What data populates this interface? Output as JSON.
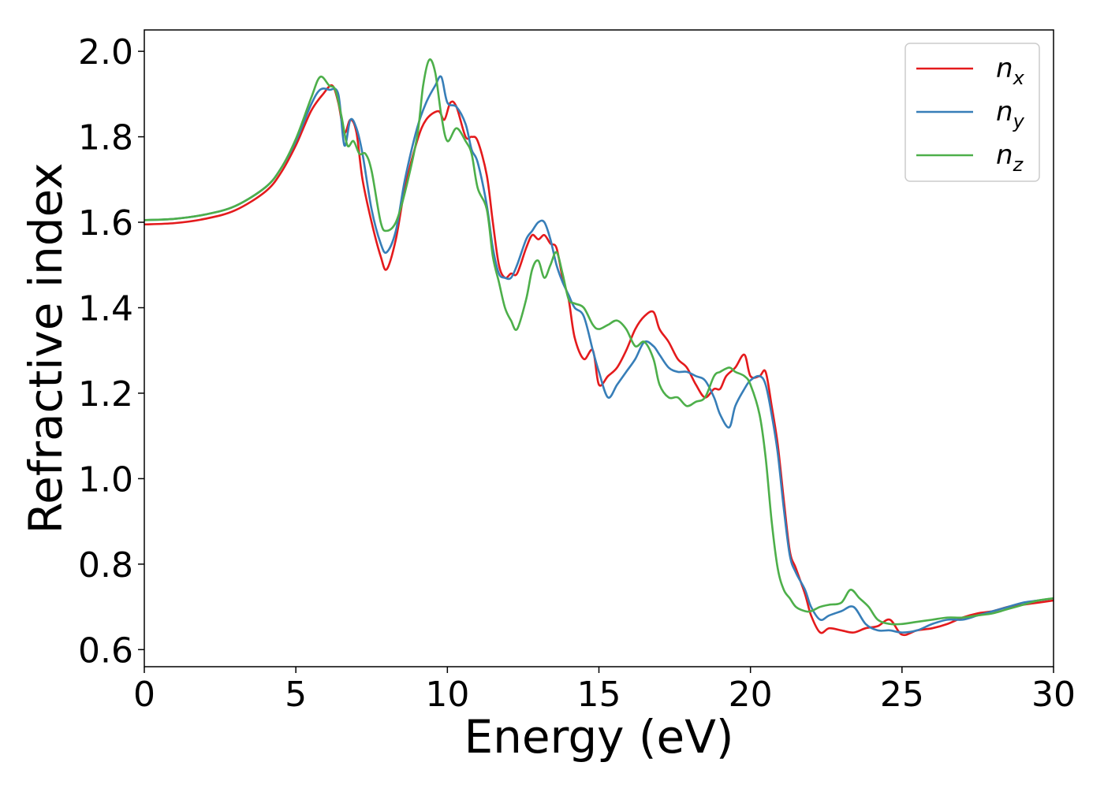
{
  "chart_data": {
    "type": "line",
    "xlabel": "Energy (eV)",
    "ylabel": "Refractive index",
    "xlim": [
      0,
      30
    ],
    "ylim": [
      0.56,
      2.05
    ],
    "xticks": [
      "0",
      "5",
      "10",
      "15",
      "20",
      "25",
      "30"
    ],
    "yticks": [
      "0.6",
      "0.8",
      "1.0",
      "1.2",
      "1.4",
      "1.6",
      "1.8",
      "2.0"
    ],
    "grid": false,
    "legend_position": "top-right",
    "series": [
      {
        "name": "n",
        "subscript": "x",
        "color": "#e41a1c",
        "x": [
          0,
          1,
          2,
          3,
          4,
          4.5,
          5,
          5.5,
          5.9,
          6.2,
          6.4,
          6.6,
          6.8,
          7.0,
          7.2,
          7.5,
          7.8,
          8.0,
          8.3,
          8.6,
          9.0,
          9.3,
          9.7,
          9.9,
          10.1,
          10.3,
          10.6,
          10.8,
          11.0,
          11.3,
          11.5,
          11.7,
          11.9,
          12.1,
          12.3,
          12.6,
          12.8,
          13.0,
          13.2,
          13.4,
          13.6,
          13.8,
          14.0,
          14.2,
          14.5,
          14.8,
          15.0,
          15.3,
          15.6,
          15.9,
          16.2,
          16.5,
          16.8,
          17.0,
          17.3,
          17.6,
          17.9,
          18.2,
          18.5,
          18.8,
          19.0,
          19.2,
          19.5,
          19.8,
          20.0,
          20.3,
          20.5,
          20.7,
          20.9,
          21.1,
          21.3,
          21.5,
          21.8,
          22.0,
          22.3,
          22.6,
          23.0,
          23.4,
          23.8,
          24.2,
          24.6,
          25.0,
          25.5,
          26.0,
          26.5,
          27.0,
          27.5,
          28.0,
          28.5,
          29.0,
          29.5,
          30.0
        ],
        "y": [
          1.595,
          1.598,
          1.608,
          1.628,
          1.672,
          1.715,
          1.78,
          1.86,
          1.9,
          1.92,
          1.88,
          1.81,
          1.84,
          1.81,
          1.7,
          1.6,
          1.52,
          1.49,
          1.56,
          1.68,
          1.79,
          1.84,
          1.86,
          1.84,
          1.88,
          1.87,
          1.8,
          1.8,
          1.79,
          1.71,
          1.6,
          1.5,
          1.47,
          1.48,
          1.48,
          1.54,
          1.57,
          1.56,
          1.57,
          1.55,
          1.54,
          1.47,
          1.42,
          1.33,
          1.28,
          1.3,
          1.22,
          1.24,
          1.26,
          1.3,
          1.35,
          1.38,
          1.39,
          1.35,
          1.32,
          1.28,
          1.26,
          1.22,
          1.19,
          1.21,
          1.21,
          1.24,
          1.26,
          1.29,
          1.24,
          1.24,
          1.25,
          1.17,
          1.08,
          0.95,
          0.83,
          0.79,
          0.73,
          0.68,
          0.64,
          0.65,
          0.645,
          0.64,
          0.65,
          0.655,
          0.67,
          0.635,
          0.645,
          0.65,
          0.66,
          0.675,
          0.685,
          0.69,
          0.7,
          0.705,
          0.71,
          0.715
        ]
      },
      {
        "name": "n",
        "subscript": "y",
        "color": "#377eb8",
        "x": [
          0,
          1,
          2,
          3,
          4,
          4.5,
          5,
          5.5,
          5.8,
          6.1,
          6.4,
          6.6,
          6.8,
          7.0,
          7.2,
          7.5,
          7.8,
          8.0,
          8.3,
          8.6,
          9.0,
          9.3,
          9.6,
          9.8,
          10.0,
          10.3,
          10.6,
          10.8,
          11.0,
          11.3,
          11.5,
          11.7,
          11.9,
          12.1,
          12.3,
          12.6,
          12.8,
          13.0,
          13.2,
          13.4,
          13.6,
          13.8,
          14.0,
          14.2,
          14.5,
          14.8,
          15.0,
          15.3,
          15.6,
          15.9,
          16.2,
          16.5,
          16.8,
          17.0,
          17.3,
          17.6,
          17.9,
          18.2,
          18.5,
          18.8,
          19.0,
          19.3,
          19.5,
          19.8,
          20.0,
          20.3,
          20.5,
          20.7,
          20.9,
          21.1,
          21.3,
          21.5,
          21.8,
          22.0,
          22.3,
          22.6,
          23.0,
          23.4,
          23.8,
          24.2,
          24.6,
          25.0,
          25.5,
          26.0,
          26.5,
          27.0,
          27.5,
          28.0,
          28.5,
          29.0,
          29.5,
          30.0
        ],
        "y": [
          1.605,
          1.608,
          1.618,
          1.638,
          1.682,
          1.725,
          1.79,
          1.875,
          1.91,
          1.91,
          1.9,
          1.78,
          1.84,
          1.82,
          1.76,
          1.63,
          1.55,
          1.53,
          1.58,
          1.7,
          1.82,
          1.88,
          1.92,
          1.94,
          1.88,
          1.87,
          1.83,
          1.77,
          1.74,
          1.64,
          1.54,
          1.48,
          1.47,
          1.47,
          1.5,
          1.56,
          1.58,
          1.6,
          1.6,
          1.56,
          1.5,
          1.46,
          1.43,
          1.4,
          1.38,
          1.3,
          1.25,
          1.19,
          1.22,
          1.25,
          1.28,
          1.32,
          1.31,
          1.29,
          1.26,
          1.25,
          1.25,
          1.24,
          1.23,
          1.19,
          1.15,
          1.12,
          1.17,
          1.21,
          1.23,
          1.24,
          1.22,
          1.15,
          1.06,
          0.93,
          0.82,
          0.78,
          0.74,
          0.7,
          0.67,
          0.68,
          0.69,
          0.7,
          0.66,
          0.645,
          0.645,
          0.64,
          0.645,
          0.66,
          0.67,
          0.67,
          0.68,
          0.69,
          0.7,
          0.71,
          0.715,
          0.72
        ]
      },
      {
        "name": "n",
        "subscript": "z",
        "color": "#4daf4a",
        "x": [
          0,
          1,
          2,
          3,
          4,
          4.5,
          5,
          5.5,
          5.8,
          6.1,
          6.3,
          6.5,
          6.7,
          6.9,
          7.1,
          7.3,
          7.5,
          7.8,
          8.0,
          8.3,
          8.6,
          9.0,
          9.2,
          9.4,
          9.6,
          9.8,
          10.0,
          10.3,
          10.6,
          10.8,
          11.0,
          11.3,
          11.5,
          11.7,
          11.9,
          12.1,
          12.3,
          12.6,
          12.8,
          13.0,
          13.2,
          13.4,
          13.6,
          13.8,
          14.0,
          14.2,
          14.5,
          14.8,
          15.0,
          15.3,
          15.6,
          15.9,
          16.2,
          16.5,
          16.8,
          17.0,
          17.3,
          17.6,
          17.9,
          18.2,
          18.5,
          18.8,
          19.0,
          19.3,
          19.5,
          19.8,
          20.0,
          20.3,
          20.5,
          20.7,
          20.9,
          21.1,
          21.3,
          21.5,
          21.8,
          22.0,
          22.3,
          22.6,
          23.0,
          23.3,
          23.6,
          23.9,
          24.2,
          24.6,
          25.0,
          25.5,
          26.0,
          26.5,
          27.0,
          27.5,
          28.0,
          28.5,
          29.0,
          29.5,
          30.0
        ],
        "y": [
          1.605,
          1.608,
          1.618,
          1.638,
          1.682,
          1.725,
          1.795,
          1.89,
          1.94,
          1.92,
          1.91,
          1.85,
          1.78,
          1.79,
          1.76,
          1.76,
          1.72,
          1.6,
          1.58,
          1.6,
          1.67,
          1.8,
          1.92,
          1.98,
          1.95,
          1.85,
          1.79,
          1.82,
          1.79,
          1.76,
          1.68,
          1.63,
          1.52,
          1.46,
          1.4,
          1.37,
          1.35,
          1.42,
          1.49,
          1.51,
          1.47,
          1.5,
          1.53,
          1.48,
          1.42,
          1.41,
          1.4,
          1.36,
          1.35,
          1.36,
          1.37,
          1.35,
          1.31,
          1.32,
          1.28,
          1.22,
          1.19,
          1.19,
          1.17,
          1.18,
          1.19,
          1.24,
          1.25,
          1.26,
          1.25,
          1.24,
          1.22,
          1.15,
          1.05,
          0.9,
          0.79,
          0.74,
          0.72,
          0.7,
          0.69,
          0.69,
          0.7,
          0.705,
          0.71,
          0.74,
          0.72,
          0.7,
          0.67,
          0.66,
          0.66,
          0.665,
          0.67,
          0.675,
          0.675,
          0.68,
          0.685,
          0.695,
          0.705,
          0.715,
          0.72
        ]
      }
    ]
  }
}
